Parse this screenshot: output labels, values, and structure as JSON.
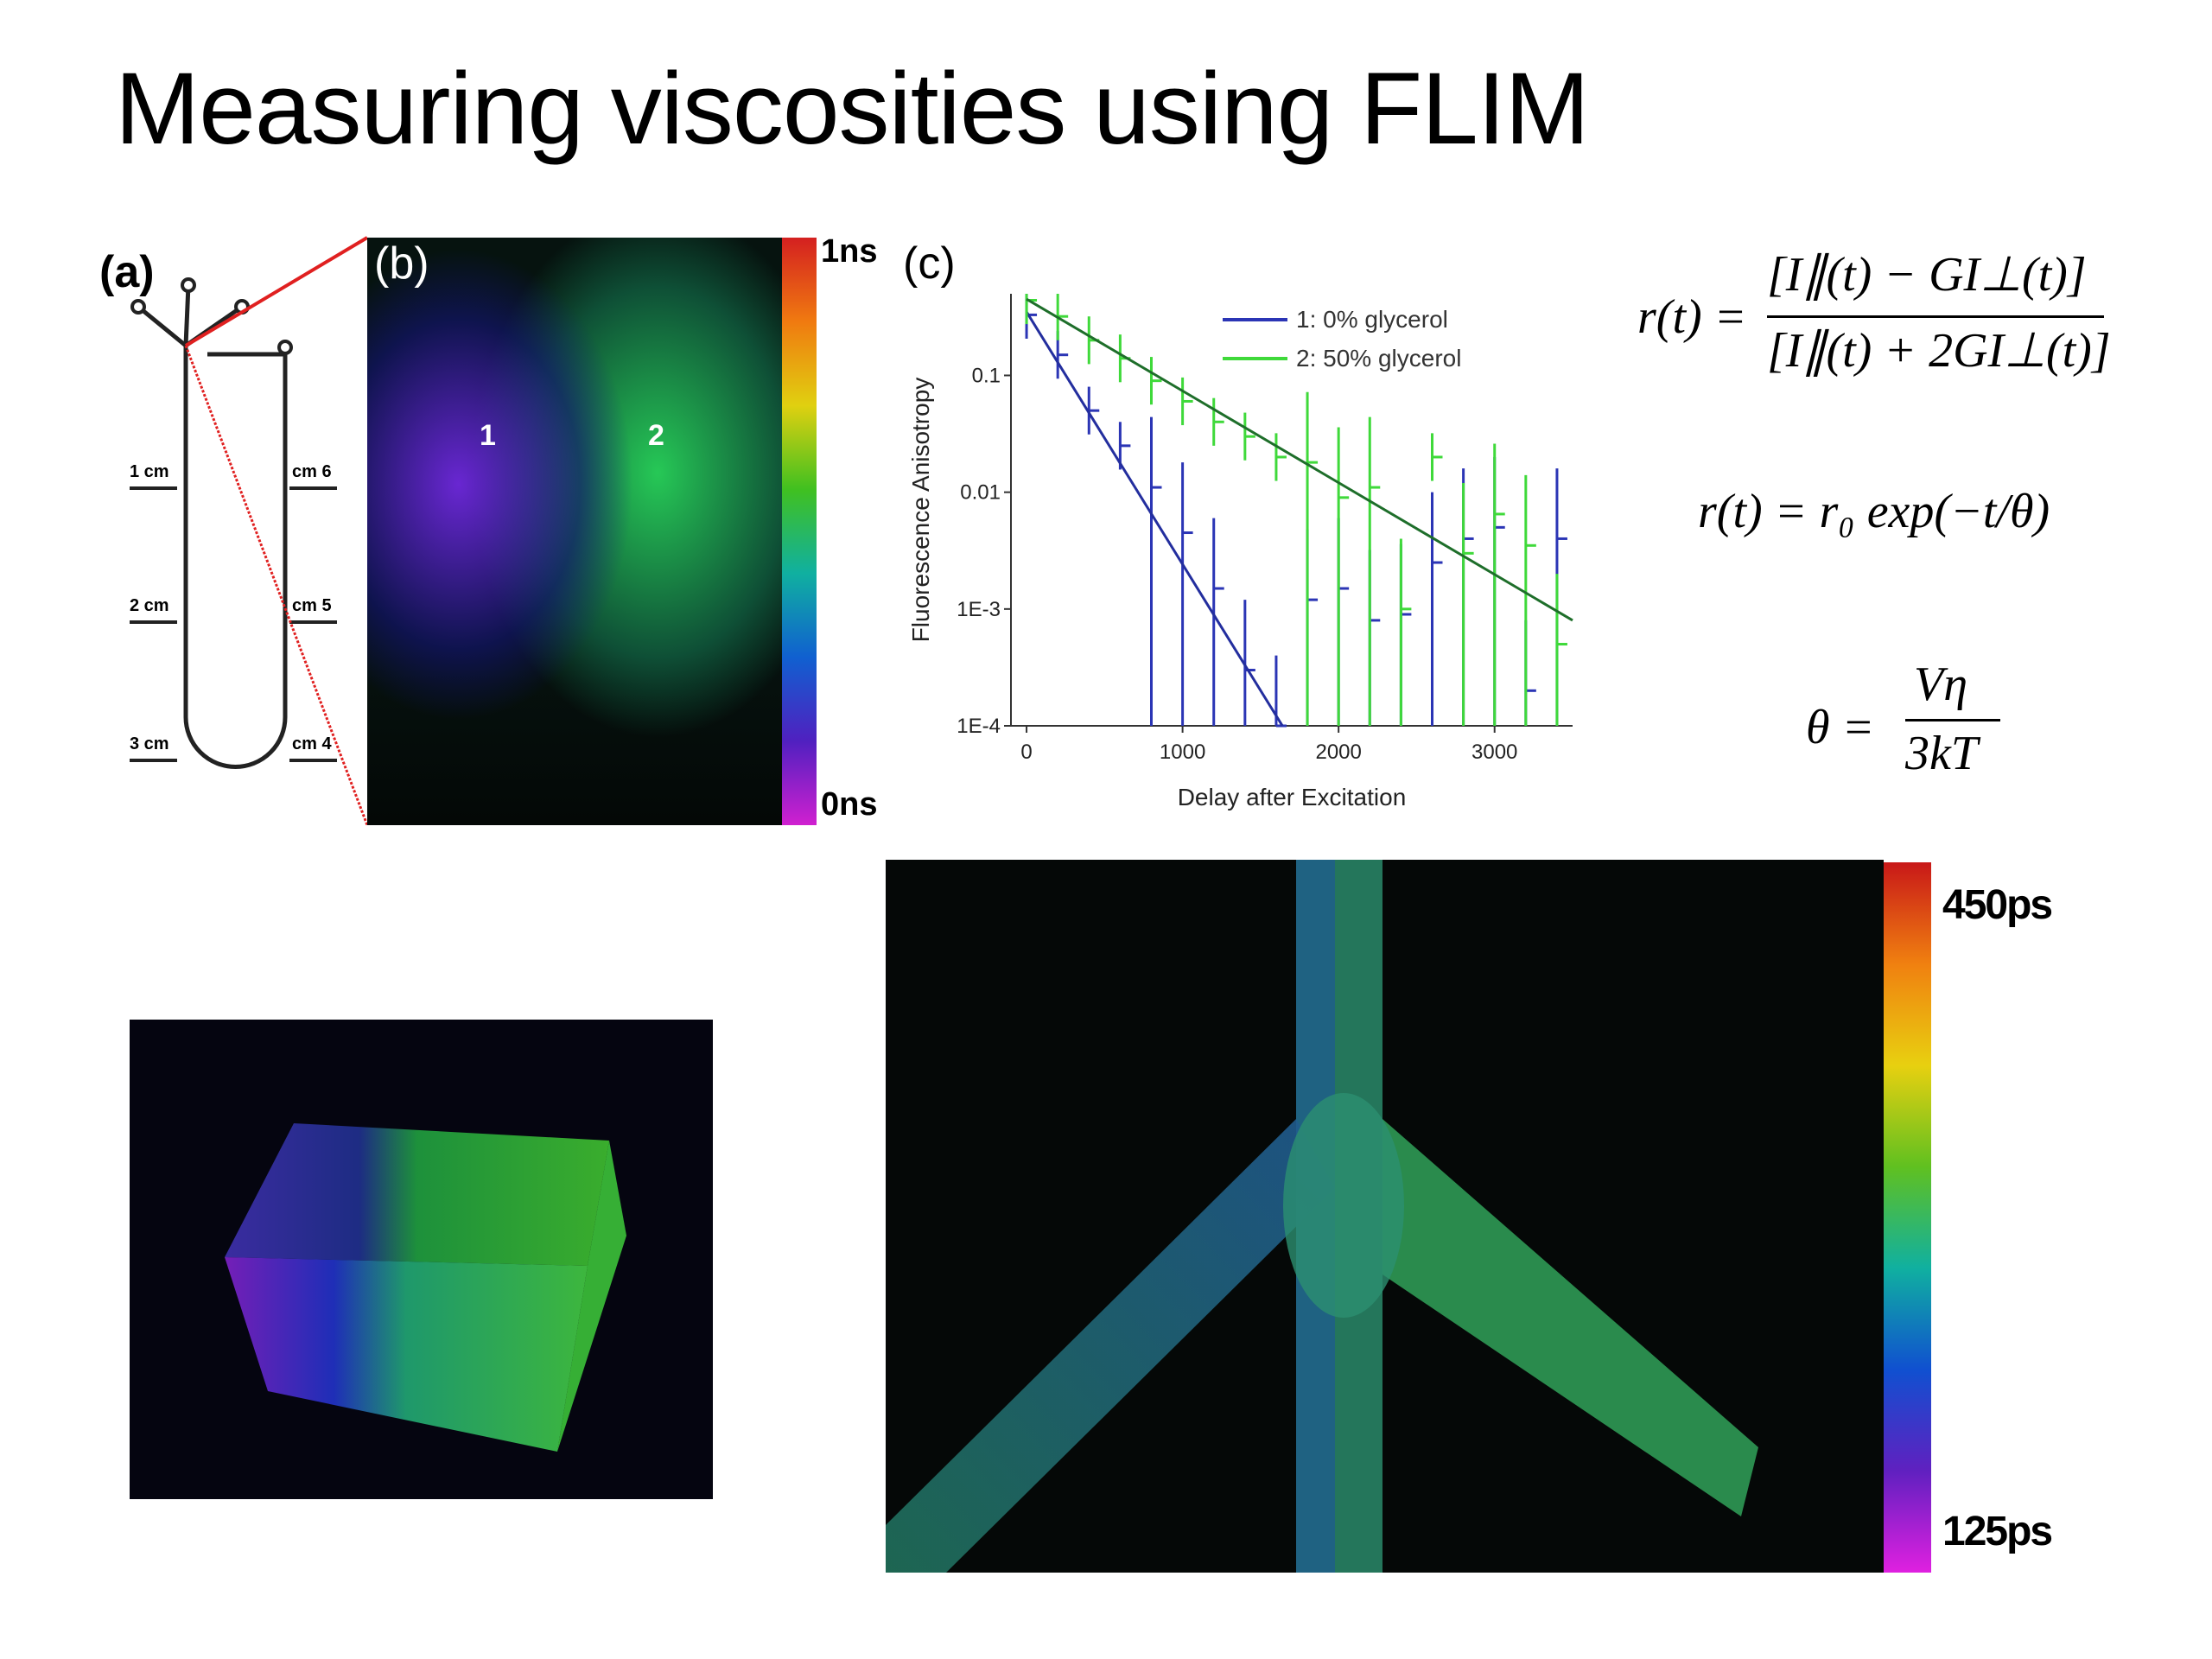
{
  "title": "Measuring viscosities using FLIM",
  "panel_a": {
    "label": "(a)",
    "left_marks": [
      "1 cm",
      "2 cm",
      "3 cm"
    ],
    "right_marks": [
      "cm 6",
      "cm 5",
      "cm 4"
    ]
  },
  "panel_b": {
    "label": "(b)",
    "region_labels": [
      "1",
      "2"
    ],
    "colorbar_top": "1ns",
    "colorbar_bottom": "0ns"
  },
  "panel_c": {
    "label": "(c)"
  },
  "chart_data": {
    "type": "scatter",
    "xlabel": "Delay after Excitation",
    "ylabel": "Fluorescence Anisotropy",
    "yscale": "log",
    "xlim": [
      -100,
      3500
    ],
    "ylim": [
      0.0001,
      0.5
    ],
    "x_ticks": [
      0,
      1000,
      2000,
      3000
    ],
    "x_tick_labels": [
      "0",
      "1000",
      "2000",
      "3000"
    ],
    "y_ticks": [
      0.0001,
      0.001,
      0.01,
      0.1
    ],
    "y_tick_labels": [
      "1E-4",
      "1E-3",
      "0.01",
      "0.1"
    ],
    "legend_position": "top-right",
    "series": [
      {
        "name": "1: 0% glycerol",
        "color": "#2b35b5",
        "fit": [
          [
            0,
            0.35
          ],
          [
            1640,
            0.0001
          ]
        ],
        "x": [
          0,
          200,
          400,
          600,
          800,
          1000,
          1200,
          1400,
          1600,
          1800,
          2000,
          2200,
          2400,
          2600,
          2800,
          3000,
          3200,
          3400
        ],
        "y": [
          0.33,
          0.15,
          0.05,
          0.025,
          0.011,
          0.0045,
          0.0015,
          0.0003,
          0.0001,
          0.0012,
          0.0015,
          0.0008,
          0.0009,
          0.0025,
          0.004,
          0.005,
          0.0002,
          0.004
        ]
      },
      {
        "name": "2: 50% glycerol",
        "color": "#3fd93a",
        "fit": [
          [
            0,
            0.45
          ],
          [
            3500,
            0.0008
          ]
        ],
        "x": [
          0,
          200,
          400,
          600,
          800,
          1000,
          1200,
          1400,
          1600,
          1800,
          2000,
          2200,
          2400,
          2600,
          2800,
          3000,
          3200,
          3400
        ],
        "y": [
          0.44,
          0.32,
          0.2,
          0.14,
          0.09,
          0.06,
          0.04,
          0.03,
          0.02,
          0.018,
          0.009,
          0.011,
          0.001,
          0.02,
          0.003,
          0.0065,
          0.0035,
          0.0005
        ]
      }
    ],
    "error_bars_present": true
  },
  "equations": {
    "eq1_lhs": "r(t) =",
    "eq1_num": "[I∥(t) − GI⊥(t)]",
    "eq1_den": "[I∥(t) + 2GI⊥(t)]",
    "eq2": "r(t) = r₀ exp(−t/θ)",
    "eq3_lhs": "θ =",
    "eq3_num": "Vη",
    "eq3_den": "3kT"
  },
  "flim_image": {
    "colorbar_top": "450ps",
    "colorbar_bottom": "125ps"
  }
}
